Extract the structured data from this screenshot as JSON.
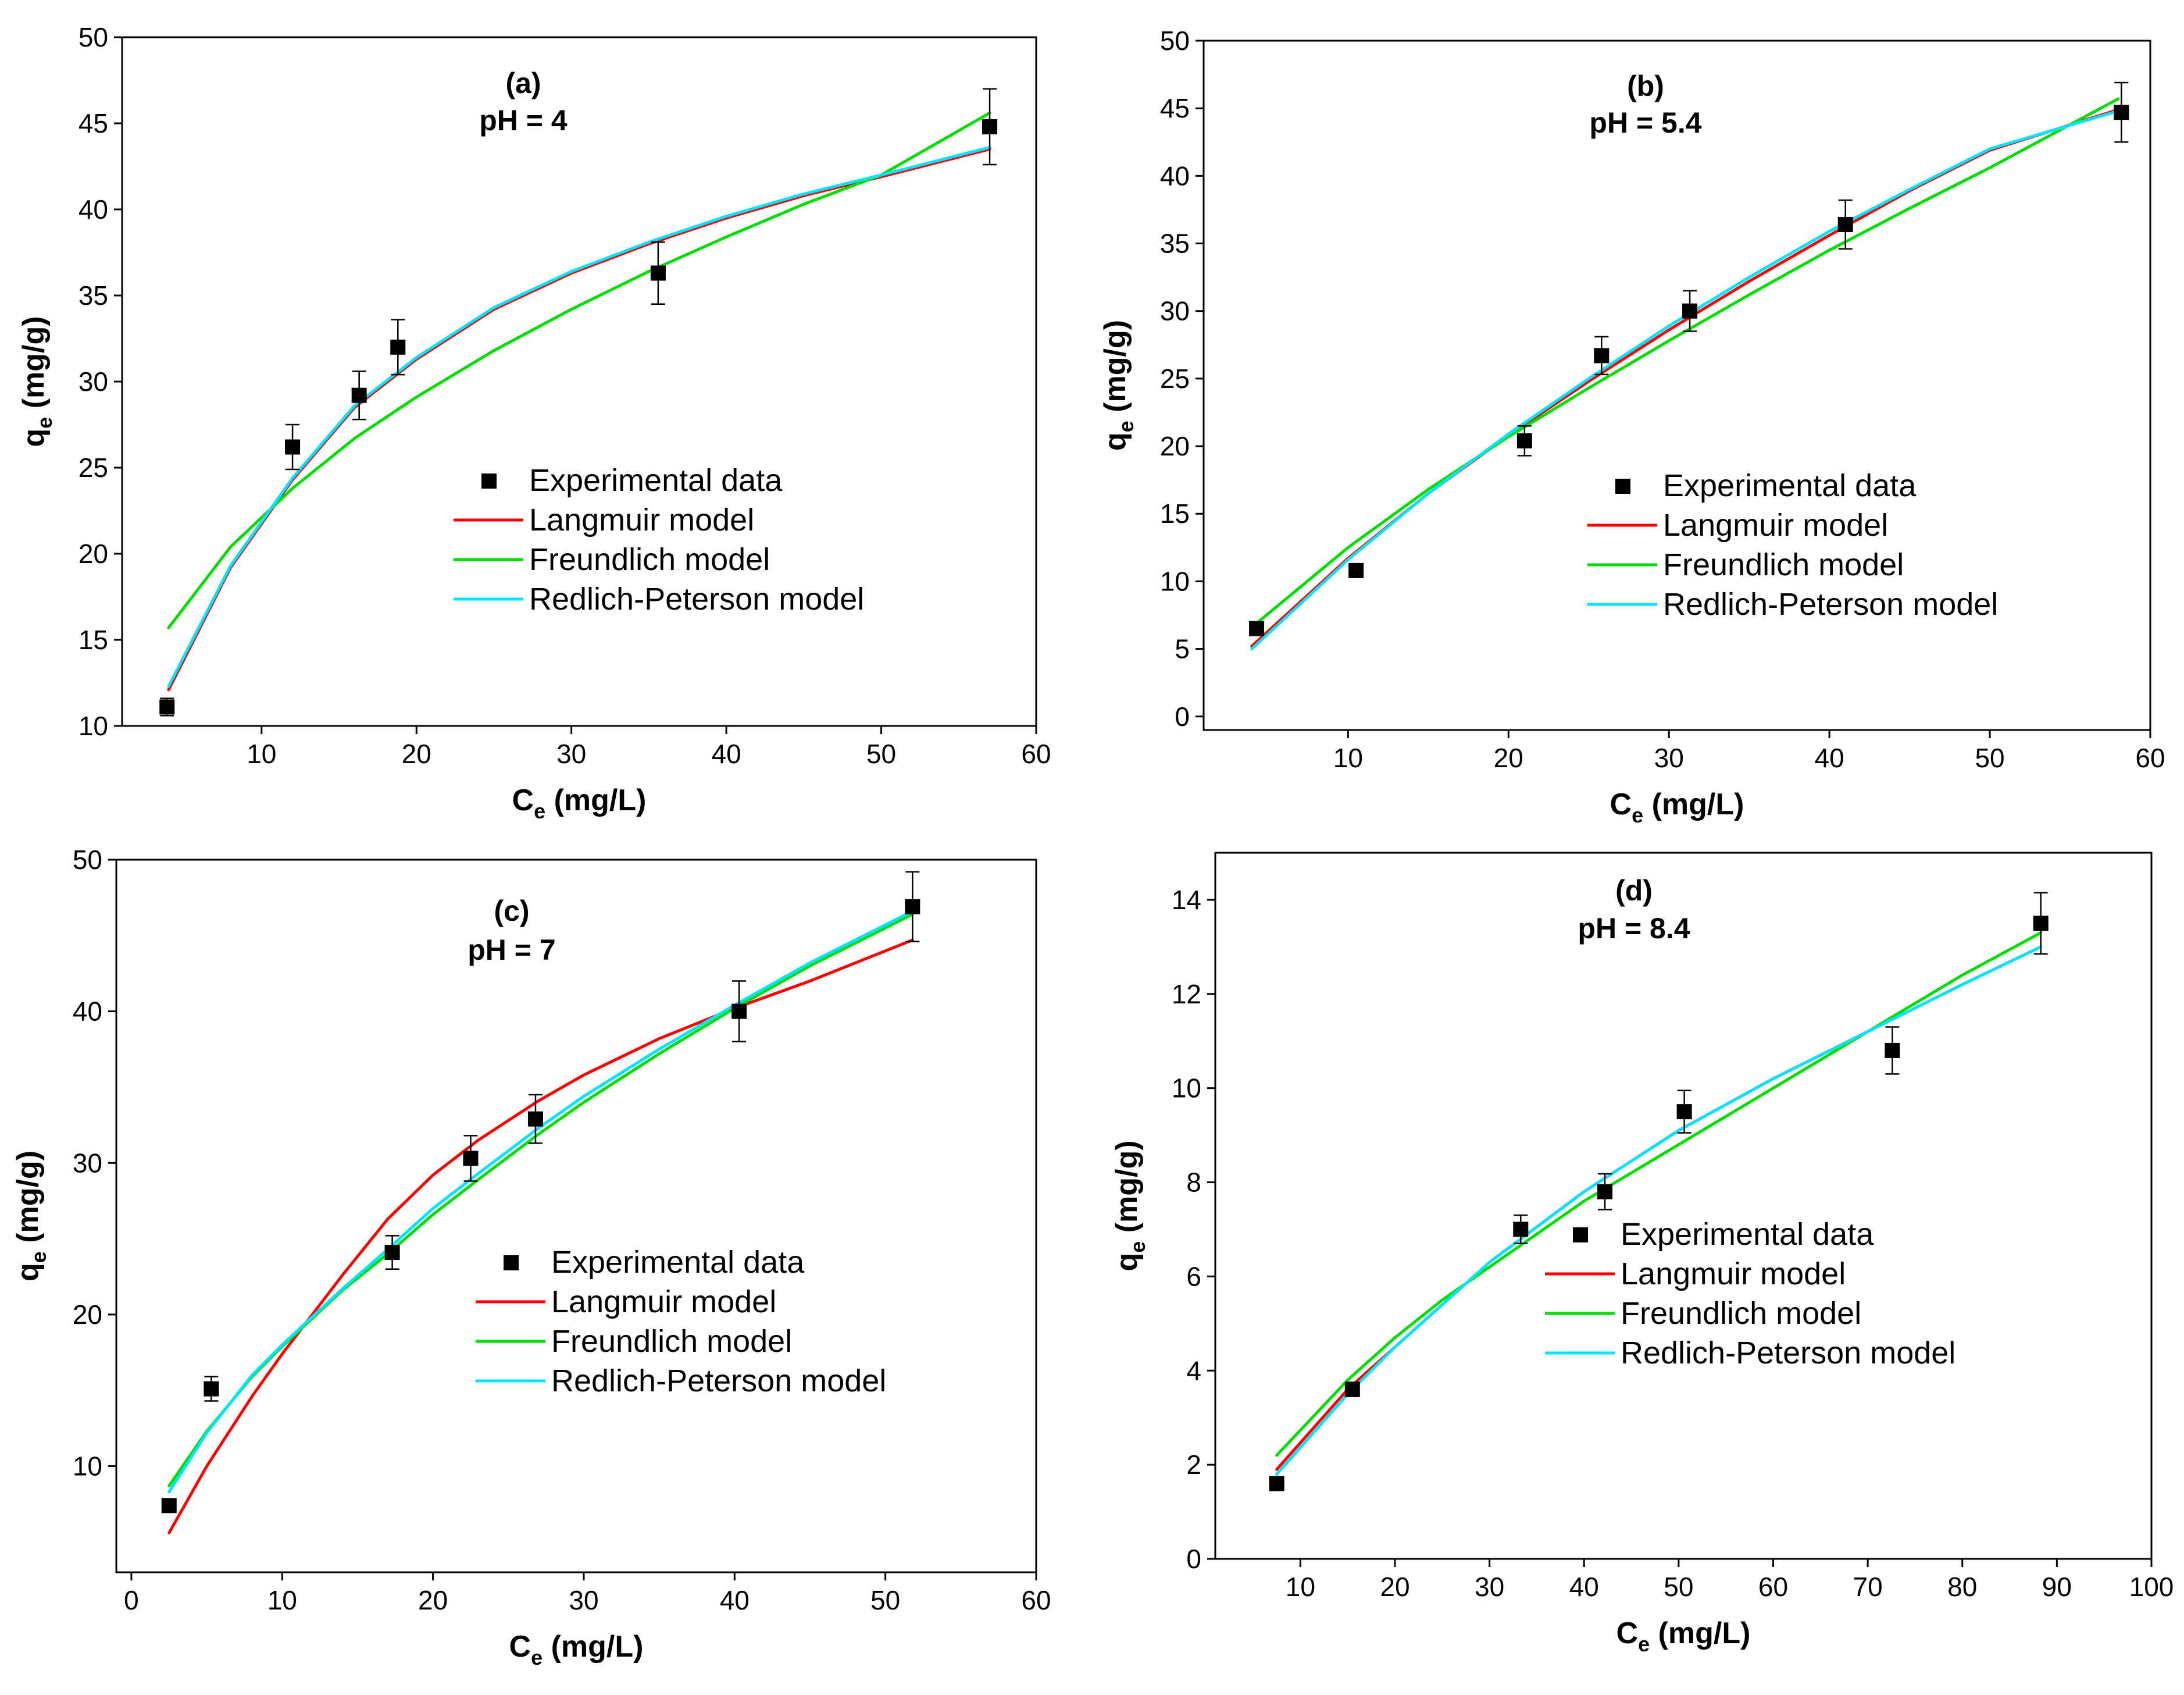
{
  "colors": {
    "langmuir": "#ff0000",
    "freundlich": "#00dd00",
    "redlich": "#00e5ff",
    "experimental": "#000000"
  },
  "legend_labels": {
    "experimental": "Experimental data",
    "langmuir": "Langmuir model",
    "freundlich": "Freundlich model",
    "redlich": "Redlich-Peterson model"
  },
  "chart_data": [
    {
      "type": "scatter",
      "panel": "(a)",
      "title": "pH = 4",
      "xlabel": "C_e (mg/L)",
      "ylabel": "q_e (mg/g)",
      "xlim": [
        1,
        60
      ],
      "ylim": [
        10,
        50
      ],
      "xticks": [
        10,
        20,
        30,
        40,
        50,
        60
      ],
      "yticks": [
        10,
        15,
        20,
        25,
        30,
        35,
        40,
        45,
        50
      ],
      "legend_position": "center-right",
      "experimental": {
        "x": [
          3.9,
          12.0,
          16.3,
          18.8,
          35.6,
          57.0
        ],
        "y": [
          11.1,
          26.2,
          29.2,
          32.0,
          36.3,
          44.8
        ],
        "err": [
          0.5,
          1.3,
          1.4,
          1.6,
          1.8,
          2.2
        ]
      },
      "series": [
        {
          "name": "Langmuir model",
          "x": [
            4,
            8,
            12,
            16,
            20,
            25,
            30,
            35,
            40,
            45,
            50,
            57
          ],
          "y": [
            12.1,
            19.2,
            24.3,
            28.5,
            31.3,
            34.2,
            36.3,
            38.0,
            39.5,
            40.8,
            41.9,
            43.5
          ]
        },
        {
          "name": "Freundlich model",
          "x": [
            4,
            8,
            12,
            16,
            20,
            25,
            30,
            35,
            40,
            45,
            50,
            57
          ],
          "y": [
            15.7,
            20.4,
            23.8,
            26.7,
            29.1,
            31.8,
            34.2,
            36.4,
            38.4,
            40.3,
            42.0,
            45.6
          ]
        },
        {
          "name": "Redlich-Peterson model",
          "x": [
            4,
            8,
            12,
            16,
            20,
            25,
            30,
            35,
            40,
            45,
            50,
            57
          ],
          "y": [
            12.3,
            19.3,
            24.4,
            28.6,
            31.4,
            34.3,
            36.4,
            38.1,
            39.6,
            40.9,
            42.0,
            43.6
          ]
        }
      ]
    },
    {
      "type": "scatter",
      "panel": "(b)",
      "title": "pH = 5.4",
      "xlabel": "C_e (mg/L)",
      "ylabel": "q_e (mg/g)",
      "xlim": [
        1,
        60
      ],
      "ylim": [
        -1,
        50
      ],
      "xticks": [
        10,
        20,
        30,
        40,
        50,
        60
      ],
      "yticks": [
        0,
        5,
        10,
        15,
        20,
        25,
        30,
        35,
        40,
        45,
        50
      ],
      "legend_position": "center-right",
      "experimental": {
        "x": [
          4.3,
          10.5,
          21.0,
          25.8,
          31.3,
          41.0,
          58.2
        ],
        "y": [
          6.5,
          10.8,
          20.4,
          26.7,
          30.0,
          36.4,
          44.7
        ],
        "err": [
          0.3,
          0.5,
          1.1,
          1.4,
          1.5,
          1.8,
          2.2
        ]
      },
      "series": [
        {
          "name": "Langmuir model",
          "x": [
            4,
            10,
            15,
            20,
            25,
            30,
            35,
            40,
            45,
            50,
            58
          ],
          "y": [
            5.2,
            11.7,
            16.5,
            20.8,
            24.8,
            28.6,
            32.2,
            35.6,
            38.9,
            41.9,
            44.9
          ]
        },
        {
          "name": "Freundlich model",
          "x": [
            4,
            10,
            15,
            20,
            25,
            30,
            35,
            40,
            45,
            50,
            58
          ],
          "y": [
            6.6,
            12.5,
            16.8,
            20.7,
            24.3,
            27.8,
            31.2,
            34.5,
            37.6,
            40.6,
            45.7
          ]
        },
        {
          "name": "Redlich-Peterson model",
          "x": [
            4,
            10,
            15,
            20,
            25,
            30,
            35,
            40,
            45,
            50,
            58
          ],
          "y": [
            5.0,
            11.6,
            16.5,
            20.9,
            25.0,
            28.9,
            32.5,
            35.9,
            39.0,
            42.0,
            44.8
          ]
        }
      ]
    },
    {
      "type": "scatter",
      "panel": "(c)",
      "title": "pH = 7",
      "xlabel": "C_e (mg/L)",
      "ylabel": "q_e (mg/g)",
      "xlim": [
        -1,
        60
      ],
      "ylim": [
        3,
        50
      ],
      "xticks": [
        0,
        10,
        20,
        30,
        40,
        50,
        60
      ],
      "yticks": [
        10,
        20,
        30,
        40,
        50
      ],
      "legend_position": "center-right",
      "experimental": {
        "x": [
          2.5,
          5.3,
          17.3,
          22.5,
          26.8,
          40.3,
          51.8
        ],
        "y": [
          7.4,
          15.1,
          24.1,
          30.3,
          32.9,
          40.0,
          46.9
        ],
        "err": [
          0.3,
          0.8,
          1.1,
          1.5,
          1.6,
          2.0,
          2.3
        ]
      },
      "series": [
        {
          "name": "Langmuir model",
          "x": [
            2.5,
            5,
            8,
            10,
            14,
            17,
            20,
            23,
            27,
            30,
            35,
            40,
            45,
            51.8
          ],
          "y": [
            5.6,
            10.0,
            14.6,
            17.4,
            22.6,
            26.3,
            29.2,
            31.5,
            34.1,
            35.8,
            38.2,
            40.2,
            42.0,
            44.7
          ]
        },
        {
          "name": "Freundlich model",
          "x": [
            2.5,
            5,
            8,
            10,
            14,
            17,
            20,
            23,
            27,
            30,
            35,
            40,
            45,
            51.8
          ],
          "y": [
            8.7,
            12.3,
            15.9,
            17.9,
            21.6,
            24.0,
            26.6,
            28.9,
            31.9,
            34.0,
            37.2,
            40.2,
            43.0,
            46.4
          ]
        },
        {
          "name": "Redlich-Peterson model",
          "x": [
            2.5,
            5,
            8,
            10,
            14,
            17,
            20,
            23,
            27,
            30,
            35,
            40,
            45,
            51.8
          ],
          "y": [
            8.3,
            12.2,
            16.0,
            18.0,
            21.7,
            24.3,
            27.0,
            29.3,
            32.3,
            34.4,
            37.5,
            40.4,
            43.2,
            46.6
          ]
        }
      ]
    },
    {
      "type": "scatter",
      "panel": "(d)",
      "title": "pH = 8.4",
      "xlabel": "C_e (mg/L)",
      "ylabel": "q_e (mg/g)",
      "xlim": [
        1,
        100
      ],
      "ylim": [
        0,
        15
      ],
      "xticks": [
        10,
        20,
        30,
        40,
        50,
        60,
        70,
        80,
        90,
        100
      ],
      "yticks": [
        0,
        2,
        4,
        6,
        8,
        10,
        12,
        14
      ],
      "legend_position": "center-right",
      "experimental": {
        "x": [
          7.5,
          15.5,
          33.3,
          42.2,
          50.6,
          72.6,
          88.3
        ],
        "y": [
          1.6,
          3.6,
          7.0,
          7.8,
          9.5,
          10.8,
          13.5
        ],
        "err": [
          0.05,
          0.15,
          0.3,
          0.38,
          0.45,
          0.5,
          0.65
        ]
      },
      "series": [
        {
          "name": "Langmuir model",
          "x": [
            7.5,
            15,
            20,
            25,
            30,
            40,
            50,
            60,
            70,
            80,
            88.3
          ],
          "y": [
            1.9,
            3.6,
            4.5,
            5.4,
            6.3,
            7.8,
            9.1,
            10.2,
            11.2,
            12.2,
            13.0
          ]
        },
        {
          "name": "Freundlich model",
          "x": [
            7.5,
            15,
            20,
            25,
            30,
            40,
            50,
            60,
            70,
            80,
            88.3
          ],
          "y": [
            2.2,
            3.8,
            4.7,
            5.5,
            6.2,
            7.6,
            8.8,
            10.0,
            11.2,
            12.4,
            13.3
          ]
        },
        {
          "name": "Redlich-Peterson model",
          "x": [
            7.5,
            15,
            20,
            25,
            30,
            40,
            50,
            60,
            70,
            80,
            88.3
          ],
          "y": [
            1.8,
            3.5,
            4.5,
            5.4,
            6.3,
            7.8,
            9.1,
            10.2,
            11.2,
            12.2,
            13.0
          ]
        }
      ]
    }
  ]
}
